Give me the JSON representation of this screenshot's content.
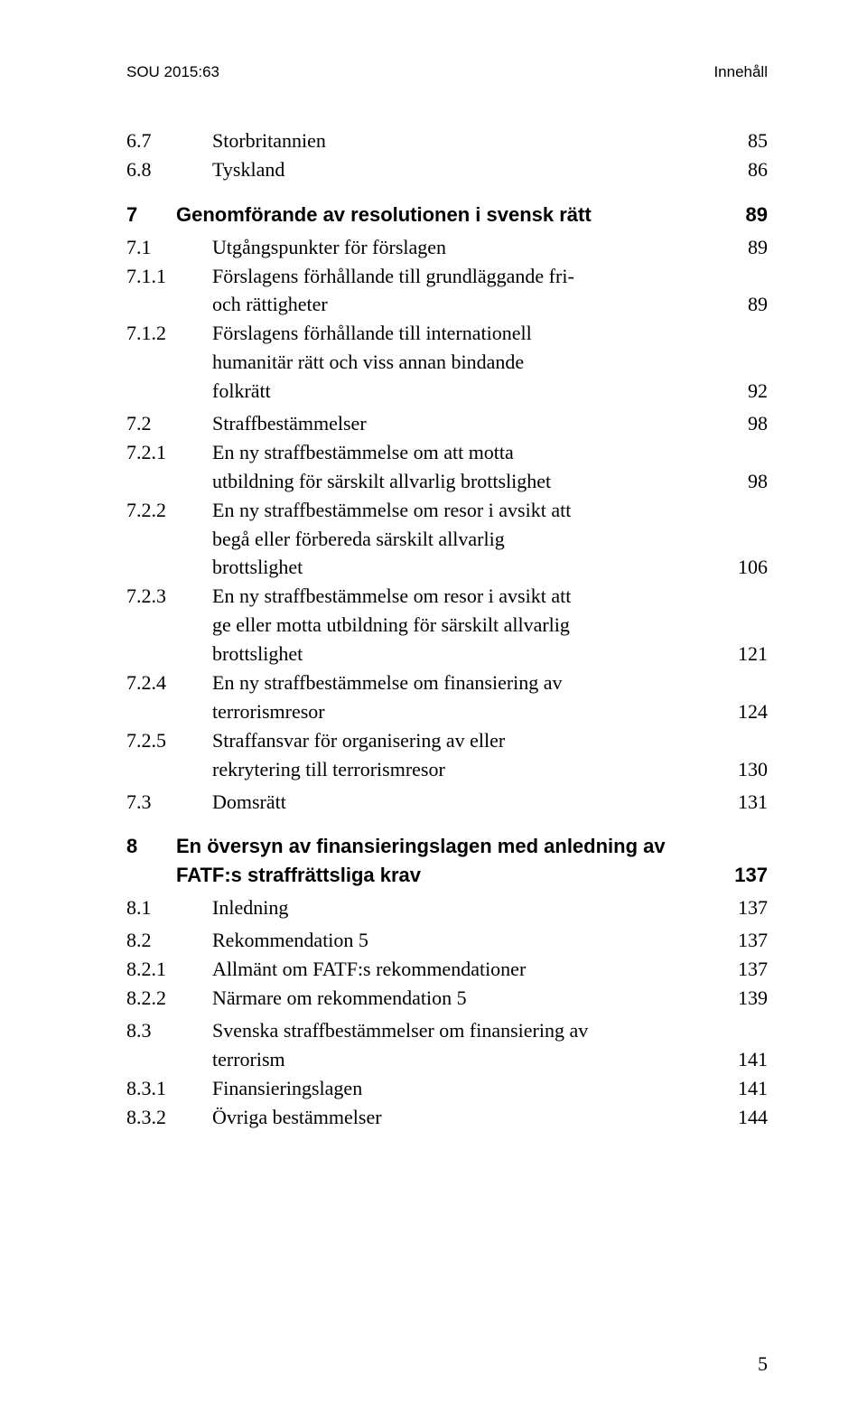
{
  "header": {
    "left": "SOU 2015:63",
    "right": "Innehåll"
  },
  "toc": [
    {
      "type": "line",
      "level": 2,
      "num": "6.7",
      "title": "Storbritannien",
      "page": "85",
      "bold": false,
      "sans": false
    },
    {
      "type": "line",
      "level": 2,
      "num": "6.8",
      "title": "Tyskland",
      "page": "86",
      "bold": false,
      "sans": false
    },
    {
      "type": "gap",
      "size": "md"
    },
    {
      "type": "line",
      "level": 1,
      "num": "7",
      "title": "Genomförande av resolutionen i svensk rätt",
      "page": "89",
      "bold": true,
      "sans": true
    },
    {
      "type": "gap",
      "size": "sm"
    },
    {
      "type": "line",
      "level": 2,
      "num": "7.1",
      "title": "Utgångspunkter för förslagen",
      "page": "89",
      "bold": false,
      "sans": false
    },
    {
      "type": "multi",
      "level": 3,
      "num": "7.1.1",
      "lines": [
        "Förslagens förhållande till grundläggande fri-",
        "och rättigheter"
      ],
      "page": "89",
      "bold": false,
      "sans": false
    },
    {
      "type": "multi",
      "level": 3,
      "num": "7.1.2",
      "lines": [
        "Förslagens förhållande till internationell",
        "humanitär rätt och viss annan bindande",
        "folkrätt"
      ],
      "page": "92",
      "bold": false,
      "sans": false
    },
    {
      "type": "gap",
      "size": "sm"
    },
    {
      "type": "line",
      "level": 2,
      "num": "7.2",
      "title": "Straffbestämmelser",
      "page": "98",
      "bold": false,
      "sans": false
    },
    {
      "type": "multi",
      "level": 3,
      "num": "7.2.1",
      "lines": [
        "En ny straffbestämmelse om att motta",
        "utbildning för särskilt allvarlig brottslighet"
      ],
      "page": "98",
      "bold": false,
      "sans": false
    },
    {
      "type": "multi",
      "level": 3,
      "num": "7.2.2",
      "lines": [
        "En ny straffbestämmelse om resor i avsikt att",
        "begå eller förbereda särskilt allvarlig",
        "brottslighet"
      ],
      "page": "106",
      "bold": false,
      "sans": false
    },
    {
      "type": "multi",
      "level": 3,
      "num": "7.2.3",
      "lines": [
        "En ny straffbestämmelse om resor i avsikt att",
        "ge eller motta utbildning för särskilt allvarlig",
        "brottslighet"
      ],
      "page": "121",
      "bold": false,
      "sans": false
    },
    {
      "type": "multi",
      "level": 3,
      "num": "7.2.4",
      "lines": [
        "En ny straffbestämmelse om finansiering av",
        "terrorismresor"
      ],
      "page": "124",
      "bold": false,
      "sans": false
    },
    {
      "type": "multi",
      "level": 3,
      "num": "7.2.5",
      "lines": [
        "Straffansvar för organisering av eller",
        "rekrytering till terrorismresor"
      ],
      "page": "130",
      "bold": false,
      "sans": false
    },
    {
      "type": "gap",
      "size": "sm"
    },
    {
      "type": "line",
      "level": 2,
      "num": "7.3",
      "title": "Domsrätt",
      "page": "131",
      "bold": false,
      "sans": false
    },
    {
      "type": "gap",
      "size": "md"
    },
    {
      "type": "multi",
      "level": 1,
      "num": "8",
      "lines": [
        "En översyn av finansieringslagen med anledning av",
        "FATF:s straffrättsliga krav"
      ],
      "page": "137",
      "bold": true,
      "sans": true
    },
    {
      "type": "gap",
      "size": "sm"
    },
    {
      "type": "line",
      "level": 2,
      "num": "8.1",
      "title": "Inledning",
      "page": "137",
      "bold": false,
      "sans": false
    },
    {
      "type": "gap",
      "size": "sm"
    },
    {
      "type": "line",
      "level": 2,
      "num": "8.2",
      "title": "Rekommendation 5",
      "page": "137",
      "bold": false,
      "sans": false
    },
    {
      "type": "line",
      "level": 3,
      "num": "8.2.1",
      "title": "Allmänt om FATF:s rekommendationer",
      "page": "137",
      "bold": false,
      "sans": false
    },
    {
      "type": "line",
      "level": 3,
      "num": "8.2.2",
      "title": "Närmare om rekommendation 5",
      "page": "139",
      "bold": false,
      "sans": false
    },
    {
      "type": "gap",
      "size": "sm"
    },
    {
      "type": "multi",
      "level": 2,
      "num": "8.3",
      "lines": [
        "Svenska straffbestämmelser om finansiering av",
        "terrorism"
      ],
      "page": "141",
      "bold": false,
      "sans": false
    },
    {
      "type": "line",
      "level": 3,
      "num": "8.3.1",
      "title": "Finansieringslagen",
      "page": "141",
      "bold": false,
      "sans": false
    },
    {
      "type": "line",
      "level": 3,
      "num": "8.3.2",
      "title": "Övriga bestämmelser",
      "page": "144",
      "bold": false,
      "sans": false
    }
  ],
  "pageNumber": "5"
}
